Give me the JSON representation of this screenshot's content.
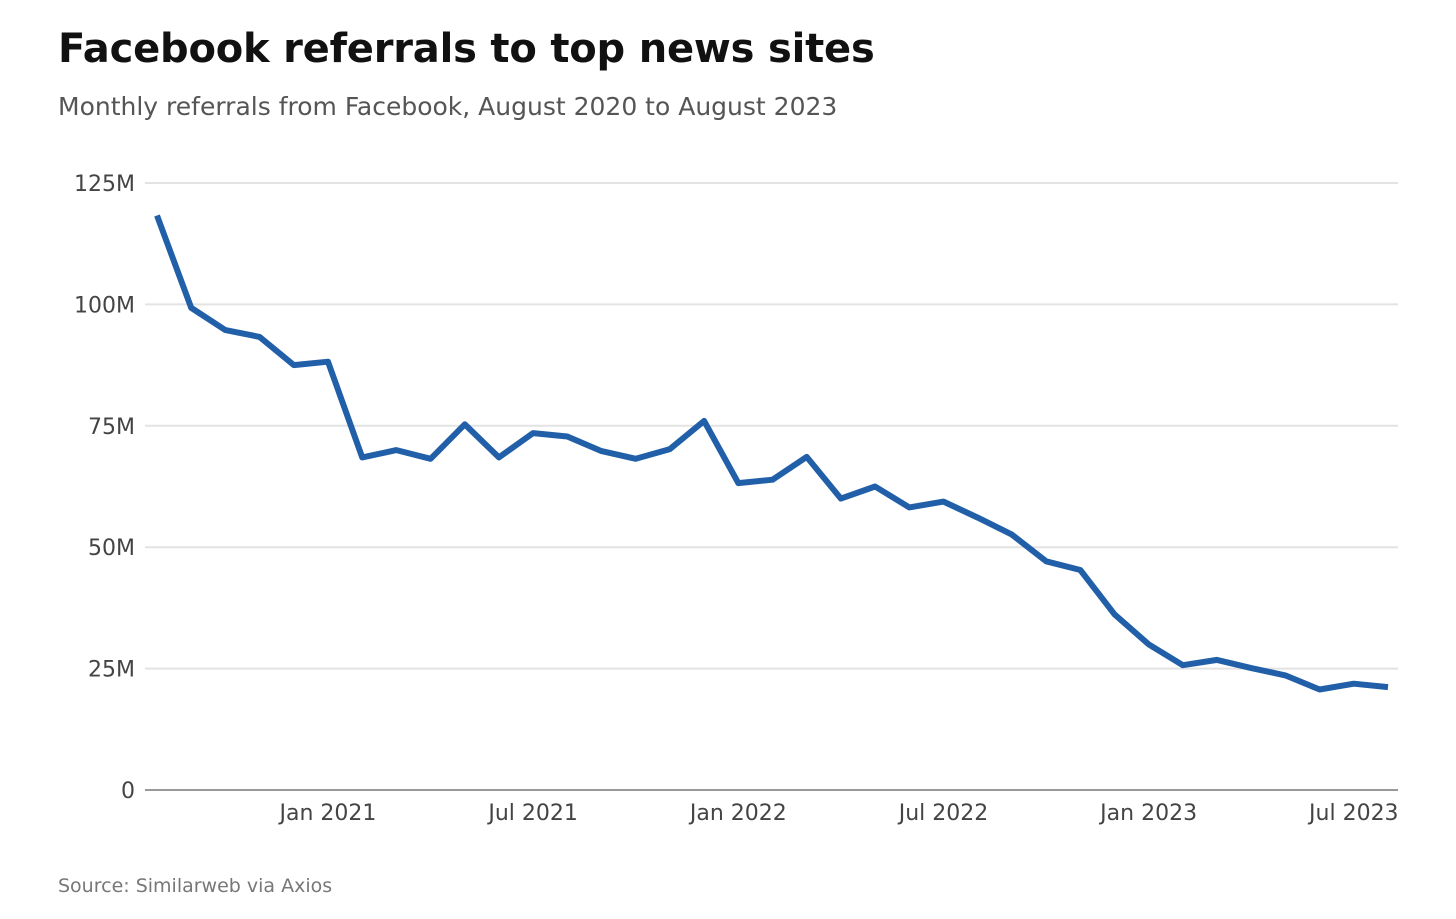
{
  "chart_data": {
    "type": "line",
    "title": "Facebook referrals to top news sites",
    "subtitle": "Monthly referrals from Facebook, August 2020 to August 2023",
    "source": "Source: Similarweb via Axios",
    "xlabel": "",
    "ylabel": "",
    "ylim": [
      0,
      125
    ],
    "y_ticks": [
      {
        "value": 0,
        "label": "0"
      },
      {
        "value": 25,
        "label": "25M"
      },
      {
        "value": 50,
        "label": "50M"
      },
      {
        "value": 75,
        "label": "75M"
      },
      {
        "value": 100,
        "label": "100M"
      },
      {
        "value": 125,
        "label": "125M"
      }
    ],
    "x_ticks": [
      {
        "date": "2021-01",
        "label": "Jan 2021"
      },
      {
        "date": "2021-07",
        "label": "Jul 2021"
      },
      {
        "date": "2022-01",
        "label": "Jan 2022"
      },
      {
        "date": "2022-07",
        "label": "Jul 2022"
      },
      {
        "date": "2023-01",
        "label": "Jan 2023"
      },
      {
        "date": "2023-07",
        "label": "Jul 2023"
      }
    ],
    "grid": true,
    "legend": "none",
    "line_color": "#2160a8",
    "grid_color": "#e3e3e3",
    "axis_color": "#999999",
    "series": [
      {
        "x": [
          "2020-08",
          "2020-09",
          "2020-10",
          "2020-11",
          "2020-12",
          "2021-01",
          "2021-02",
          "2021-03",
          "2021-04",
          "2021-05",
          "2021-06",
          "2021-07",
          "2021-08",
          "2021-09",
          "2021-10",
          "2021-11",
          "2021-12",
          "2022-01",
          "2022-02",
          "2022-03",
          "2022-04",
          "2022-05",
          "2022-06",
          "2022-07",
          "2022-08",
          "2022-09",
          "2022-10",
          "2022-11",
          "2022-12",
          "2023-01",
          "2023-02",
          "2023-03",
          "2023-04",
          "2023-05",
          "2023-06",
          "2023-07",
          "2023-08"
        ],
        "values": [
          118.3,
          99.3,
          94.7,
          93.3,
          87.5,
          88.2,
          68.5,
          70.0,
          68.2,
          75.3,
          68.5,
          73.5,
          72.8,
          69.8,
          68.2,
          70.2,
          76.0,
          63.2,
          63.9,
          68.6,
          60.0,
          62.5,
          58.2,
          59.4,
          56.1,
          52.6,
          47.1,
          45.3,
          36.2,
          30.0,
          25.7,
          26.8,
          25.1,
          23.6,
          20.7,
          21.9,
          21.2
        ]
      }
    ]
  }
}
